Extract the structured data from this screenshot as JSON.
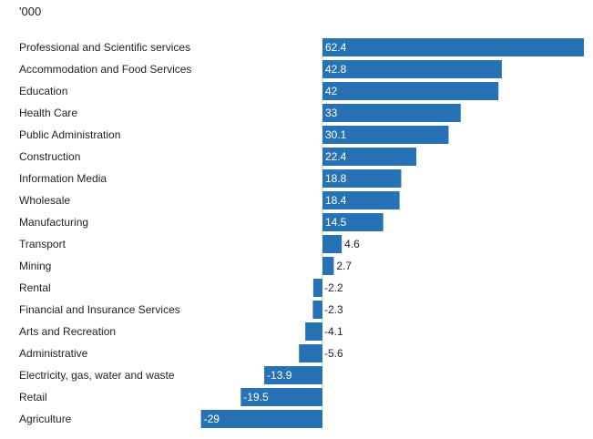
{
  "chart_data": {
    "type": "bar",
    "orientation": "horizontal",
    "unit_label": "'000",
    "categories": [
      "Professional and Scientific services",
      "Accommodation and Food Services",
      "Education",
      "Health Care",
      "Public Administration",
      "Construction",
      "Information Media",
      "Wholesale",
      "Manufacturing",
      "Transport",
      "Mining",
      "Rental",
      "Financial and Insurance Services",
      "Arts and Recreation",
      "Administrative",
      "Electricity, gas, water and waste",
      "Retail",
      "Agriculture"
    ],
    "values": [
      62.4,
      42.8,
      42,
      33,
      30.1,
      22.4,
      18.8,
      18.4,
      14.5,
      4.6,
      2.7,
      -2.2,
      -2.3,
      -4.1,
      -5.6,
      -13.9,
      -19.5,
      -29
    ],
    "value_labels": [
      "62.4",
      "42.8",
      "42",
      "33",
      "30.1",
      "22.4",
      "18.8",
      "18.4",
      "14.5",
      "4.6",
      "2.7",
      "-2.2",
      "-2.3",
      "-4.1",
      "-5.6",
      "-13.9",
      "-19.5",
      "-29"
    ],
    "xlim": [
      -29,
      62.4
    ],
    "bar_color": "#2672b4",
    "title": "",
    "xlabel": "",
    "ylabel": "",
    "grid": false
  }
}
